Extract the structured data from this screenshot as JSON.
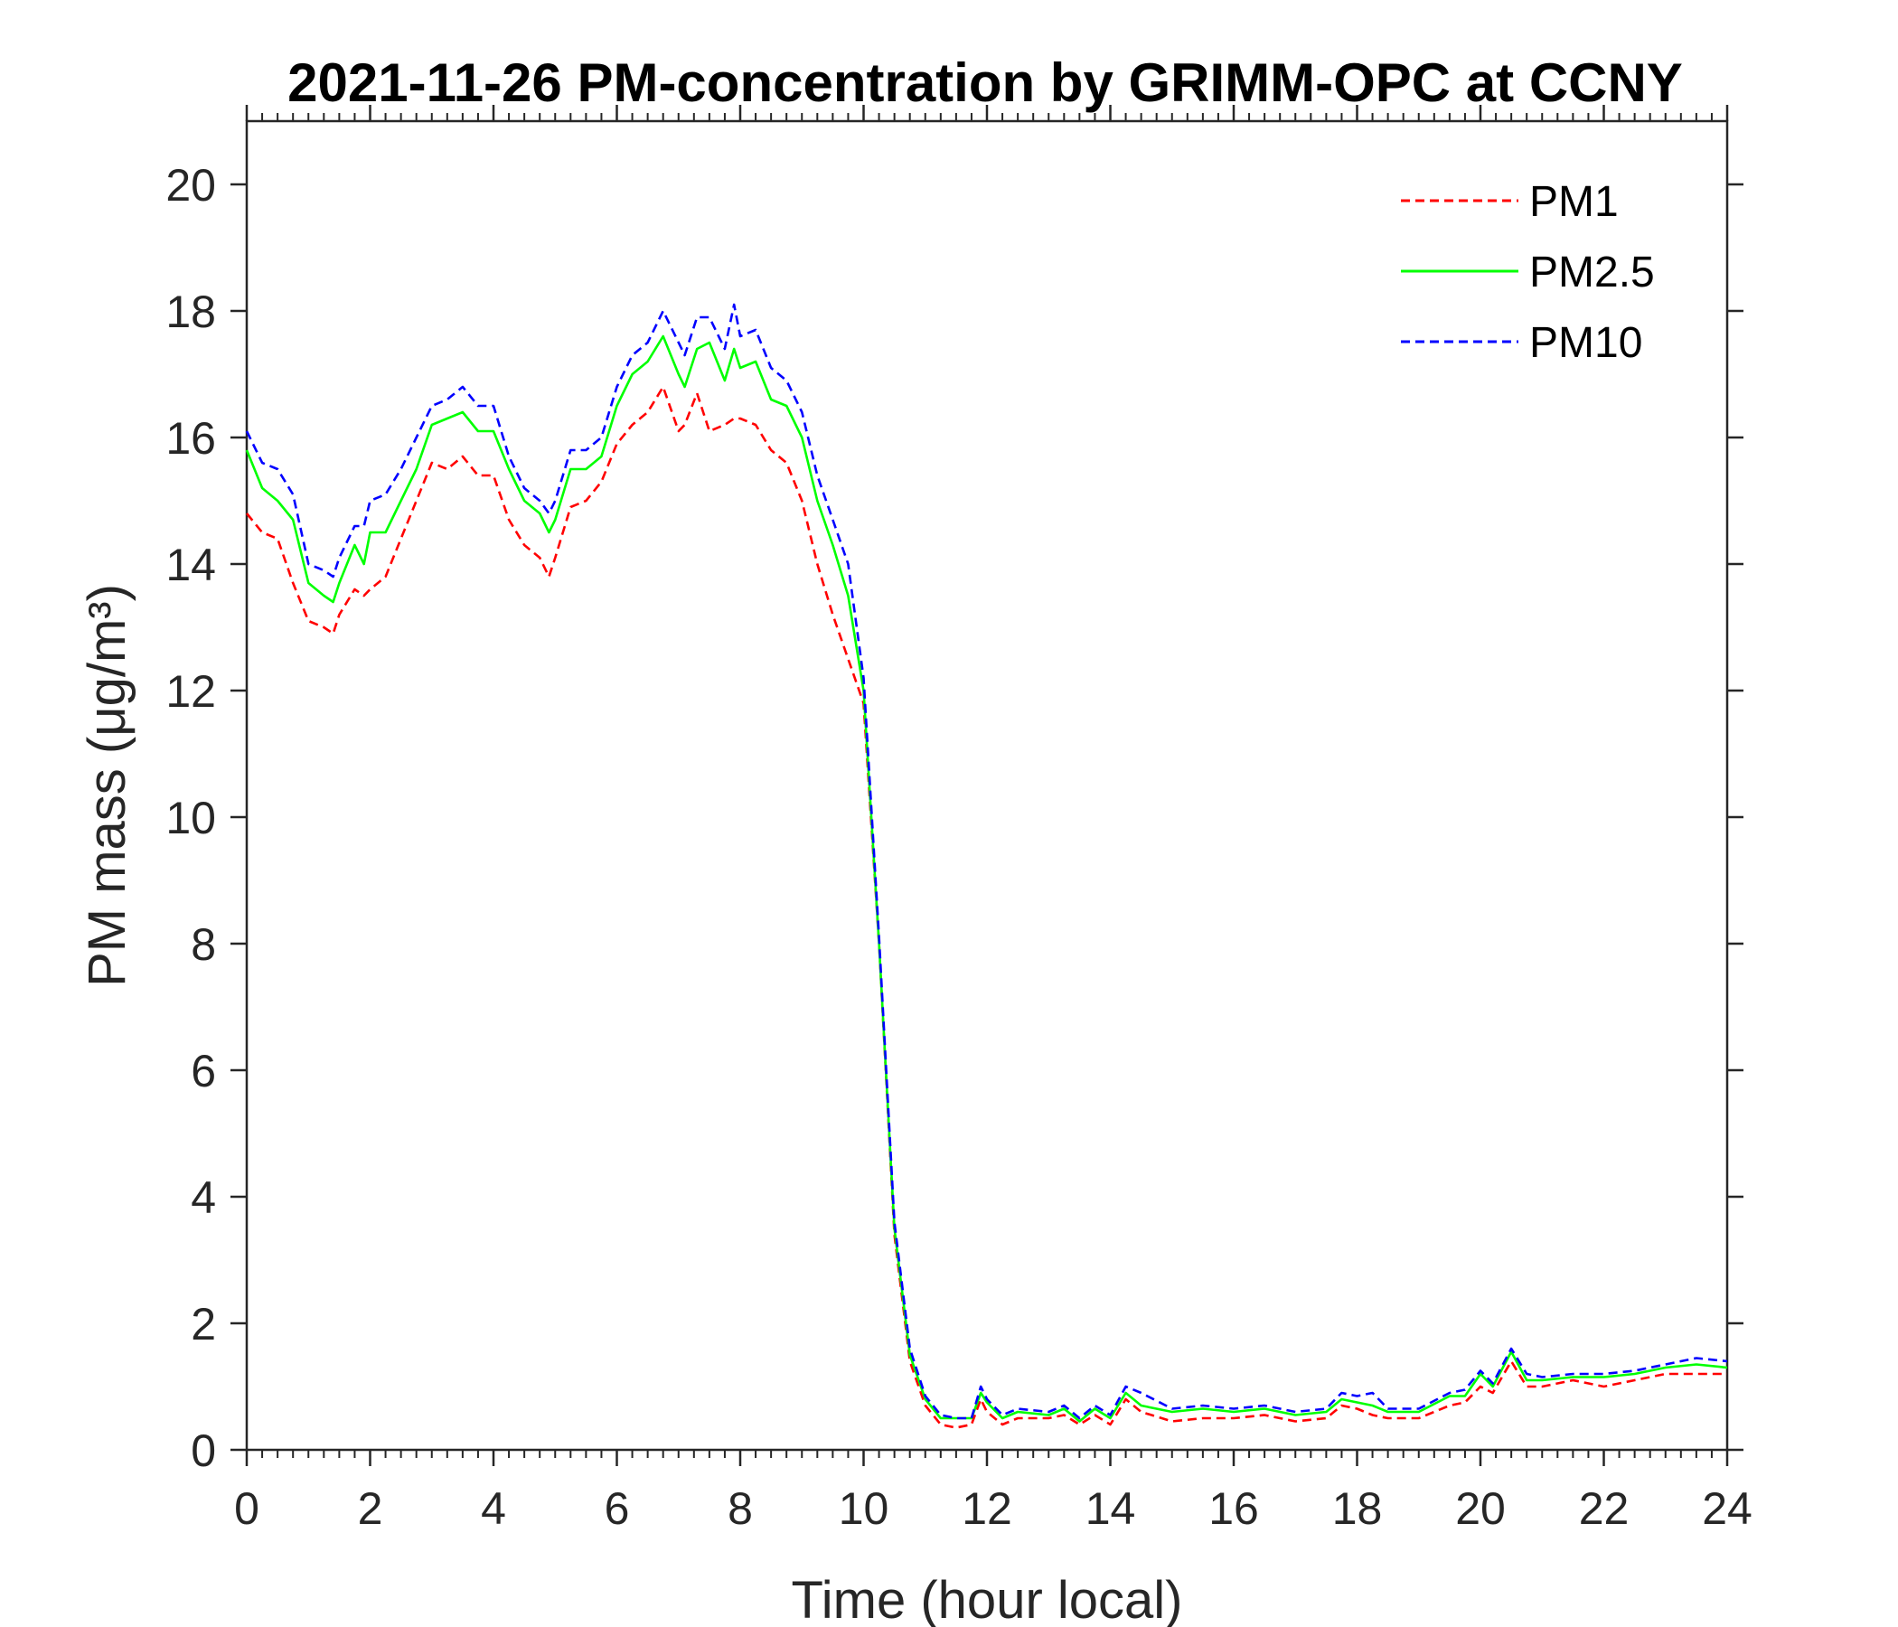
{
  "chart_data": {
    "type": "line",
    "title": "2021-11-26 PM-concentration by GRIMM-OPC at CCNY",
    "xlabel": "Time (hour local)",
    "ylabel": "PM mass (μg/m³)",
    "xlim": [
      0,
      24
    ],
    "ylim": [
      0,
      21
    ],
    "xticks": [
      "0",
      "2",
      "4",
      "6",
      "8",
      "10",
      "12",
      "14",
      "16",
      "18",
      "20",
      "22",
      "24"
    ],
    "yticks": [
      "0",
      "2",
      "4",
      "6",
      "8",
      "10",
      "12",
      "14",
      "16",
      "18",
      "20"
    ],
    "grid": false,
    "legend_position": "top-right",
    "x": [
      0,
      0.25,
      0.5,
      0.75,
      1,
      1.25,
      1.4,
      1.5,
      1.75,
      1.9,
      2,
      2.25,
      2.5,
      2.75,
      3,
      3.25,
      3.5,
      3.75,
      4,
      4.25,
      4.5,
      4.75,
      4.9,
      5,
      5.25,
      5.5,
      5.75,
      6,
      6.25,
      6.5,
      6.75,
      7,
      7.1,
      7.3,
      7.5,
      7.75,
      7.9,
      8,
      8.25,
      8.5,
      8.75,
      9,
      9.25,
      9.5,
      9.75,
      10,
      10.25,
      10.5,
      10.75,
      11,
      11.25,
      11.5,
      11.75,
      11.9,
      12,
      12.25,
      12.5,
      13,
      13.25,
      13.5,
      13.75,
      14,
      14.25,
      14.5,
      15,
      15.5,
      16,
      16.5,
      17,
      17.5,
      17.75,
      18,
      18.25,
      18.5,
      19,
      19.5,
      19.75,
      20,
      20.2,
      20.5,
      20.75,
      21,
      21.5,
      22,
      22.5,
      23,
      23.5,
      24
    ],
    "series": [
      {
        "name": "PM1",
        "color": "#ff0000",
        "style": "dashed",
        "values": [
          14.8,
          14.5,
          14.4,
          13.7,
          13.1,
          13.0,
          12.9,
          13.2,
          13.6,
          13.5,
          13.6,
          13.8,
          14.4,
          15.0,
          15.6,
          15.5,
          15.7,
          15.4,
          15.4,
          14.7,
          14.3,
          14.1,
          13.8,
          14.1,
          14.9,
          15.0,
          15.3,
          15.9,
          16.2,
          16.4,
          16.8,
          16.1,
          16.2,
          16.7,
          16.1,
          16.2,
          16.3,
          16.3,
          16.2,
          15.8,
          15.6,
          15.0,
          14.0,
          13.2,
          12.5,
          11.8,
          8.0,
          3.4,
          1.4,
          0.7,
          0.4,
          0.35,
          0.4,
          0.8,
          0.6,
          0.4,
          0.5,
          0.5,
          0.55,
          0.4,
          0.55,
          0.4,
          0.8,
          0.6,
          0.45,
          0.5,
          0.5,
          0.55,
          0.45,
          0.5,
          0.7,
          0.65,
          0.55,
          0.5,
          0.5,
          0.7,
          0.75,
          1.0,
          0.9,
          1.4,
          1.0,
          1.0,
          1.1,
          1.0,
          1.1,
          1.2,
          1.2,
          1.2
        ]
      },
      {
        "name": "PM2.5",
        "color": "#00ff00",
        "style": "solid",
        "values": [
          15.8,
          15.2,
          15.0,
          14.7,
          13.7,
          13.5,
          13.4,
          13.7,
          14.3,
          14.0,
          14.5,
          14.5,
          15.0,
          15.5,
          16.2,
          16.3,
          16.4,
          16.1,
          16.1,
          15.5,
          15.0,
          14.8,
          14.5,
          14.7,
          15.5,
          15.5,
          15.7,
          16.5,
          17.0,
          17.2,
          17.6,
          17.0,
          16.8,
          17.4,
          17.5,
          16.9,
          17.4,
          17.1,
          17.2,
          16.6,
          16.5,
          16.0,
          15.0,
          14.3,
          13.5,
          12.0,
          8.0,
          3.5,
          1.5,
          0.8,
          0.5,
          0.5,
          0.5,
          0.9,
          0.75,
          0.5,
          0.6,
          0.55,
          0.65,
          0.45,
          0.65,
          0.5,
          0.9,
          0.7,
          0.6,
          0.65,
          0.6,
          0.65,
          0.55,
          0.6,
          0.8,
          0.75,
          0.7,
          0.6,
          0.6,
          0.85,
          0.85,
          1.2,
          1.0,
          1.55,
          1.1,
          1.1,
          1.15,
          1.15,
          1.2,
          1.3,
          1.35,
          1.3
        ]
      },
      {
        "name": "PM10",
        "color": "#0000ff",
        "style": "dashed",
        "values": [
          16.1,
          15.6,
          15.5,
          15.1,
          14.0,
          13.9,
          13.8,
          14.1,
          14.6,
          14.6,
          15.0,
          15.1,
          15.5,
          16.0,
          16.5,
          16.6,
          16.8,
          16.5,
          16.5,
          15.7,
          15.2,
          15.0,
          14.8,
          15.0,
          15.8,
          15.8,
          16.0,
          16.8,
          17.3,
          17.5,
          18.0,
          17.5,
          17.3,
          17.9,
          17.9,
          17.4,
          18.1,
          17.6,
          17.7,
          17.1,
          16.9,
          16.4,
          15.4,
          14.7,
          14.0,
          12.2,
          8.1,
          3.6,
          1.6,
          0.85,
          0.55,
          0.5,
          0.5,
          1.0,
          0.8,
          0.55,
          0.65,
          0.6,
          0.7,
          0.5,
          0.7,
          0.55,
          1.0,
          0.9,
          0.65,
          0.7,
          0.65,
          0.7,
          0.6,
          0.65,
          0.9,
          0.85,
          0.9,
          0.65,
          0.65,
          0.9,
          0.95,
          1.25,
          1.05,
          1.6,
          1.2,
          1.15,
          1.2,
          1.2,
          1.25,
          1.35,
          1.45,
          1.4
        ]
      }
    ]
  }
}
